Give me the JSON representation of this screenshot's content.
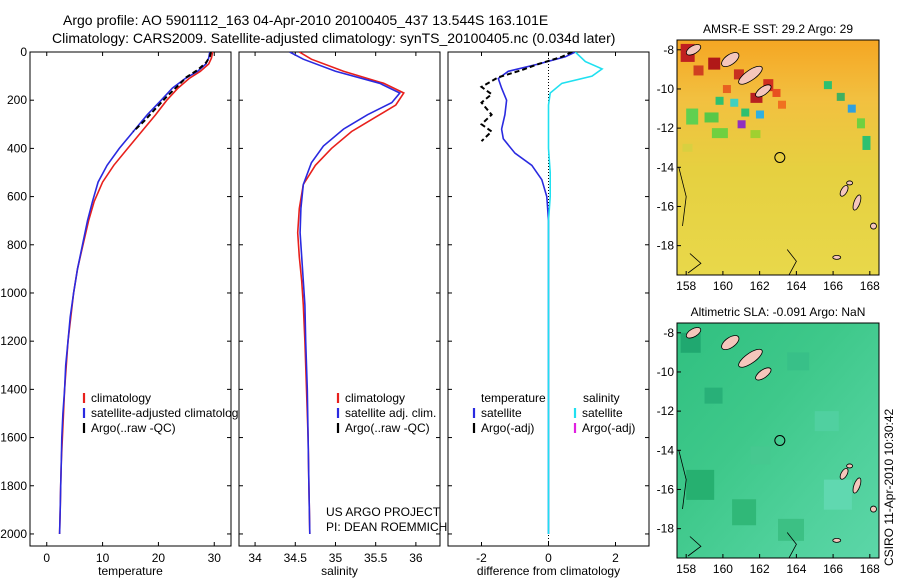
{
  "header": {
    "line1": "Argo profile: AO 5901112_163 04-Apr-2010 20100405_437 13.544S 163.101E",
    "line2": "Climatology: CARS2009. Satellite-adjusted climatology: synTS_20100405.nc (0.034d later)"
  },
  "credit": {
    "project": "US ARGO PROJECT",
    "pi": "PI: DEAN ROEMMICH",
    "stamp": "CSIRO 11-Apr-2010 10:30:42"
  },
  "colors": {
    "climatology": "#e8201c",
    "satellite": "#2a2ae0",
    "argo": "#000000",
    "satellite_salinity": "#20e0f0",
    "argo_adj_salinity": "#e020e0",
    "land": "#f5c6bc",
    "panel_border": "#000000"
  },
  "chart_data": [
    {
      "type": "line",
      "id": "temperature",
      "xlabel": "temperature",
      "ylabel": "",
      "xlim": [
        -3,
        33
      ],
      "ylim": [
        2050,
        0
      ],
      "y_inverted": true,
      "xticks": [
        0,
        10,
        20,
        30
      ],
      "yticks": [
        0,
        200,
        400,
        600,
        800,
        1000,
        1200,
        1400,
        1600,
        1800,
        2000
      ],
      "legend": [
        "climatology",
        "satellite-adjusted climatolog",
        "Argo(..raw -QC)"
      ],
      "series": [
        {
          "name": "climatology",
          "color_key": "climatology",
          "points": [
            [
              29.7,
              0
            ],
            [
              29.5,
              25
            ],
            [
              29.0,
              50
            ],
            [
              27.5,
              80
            ],
            [
              25.5,
              110
            ],
            [
              23.5,
              150
            ],
            [
              21.5,
              200
            ],
            [
              19.5,
              260
            ],
            [
              17.0,
              330
            ],
            [
              14.5,
              400
            ],
            [
              12.0,
              470
            ],
            [
              10.0,
              540
            ],
            [
              8.5,
              620
            ],
            [
              7.5,
              700
            ],
            [
              6.5,
              800
            ],
            [
              5.5,
              900
            ],
            [
              4.8,
              1000
            ],
            [
              4.3,
              1100
            ],
            [
              3.8,
              1200
            ],
            [
              3.5,
              1300
            ],
            [
              3.2,
              1400
            ],
            [
              3.0,
              1500
            ],
            [
              2.8,
              1600
            ],
            [
              2.6,
              1700
            ],
            [
              2.5,
              1800
            ],
            [
              2.4,
              1900
            ],
            [
              2.3,
              2000
            ]
          ]
        },
        {
          "name": "satellite-adjusted climatolog",
          "color_key": "satellite",
          "points": [
            [
              29.2,
              0
            ],
            [
              29.0,
              25
            ],
            [
              28.5,
              50
            ],
            [
              27.0,
              80
            ],
            [
              24.8,
              110
            ],
            [
              22.5,
              150
            ],
            [
              20.5,
              200
            ],
            [
              18.0,
              260
            ],
            [
              15.5,
              330
            ],
            [
              13.0,
              400
            ],
            [
              10.8,
              470
            ],
            [
              9.2,
              540
            ],
            [
              8.2,
              620
            ],
            [
              7.3,
              700
            ],
            [
              6.4,
              800
            ],
            [
              5.5,
              900
            ],
            [
              4.8,
              1000
            ],
            [
              4.2,
              1100
            ],
            [
              3.8,
              1200
            ],
            [
              3.4,
              1300
            ],
            [
              3.2,
              1400
            ],
            [
              2.9,
              1500
            ],
            [
              2.7,
              1600
            ],
            [
              2.6,
              1700
            ],
            [
              2.5,
              1800
            ],
            [
              2.4,
              1900
            ],
            [
              2.3,
              2000
            ]
          ]
        },
        {
          "name": "Argo(..raw -QC)",
          "color_key": "argo",
          "dashed": true,
          "points": [
            [
              29.4,
              0
            ],
            [
              29.2,
              20
            ],
            [
              28.5,
              45
            ],
            [
              27.0,
              75
            ],
            [
              25.0,
              105
            ],
            [
              23.5,
              140
            ],
            [
              21.5,
              185
            ],
            [
              19.5,
              235
            ],
            [
              17.5,
              285
            ],
            [
              15.5,
              330
            ]
          ]
        }
      ]
    },
    {
      "type": "line",
      "id": "salinity",
      "xlabel": "salinity",
      "ylabel": "",
      "xlim": [
        33.8,
        36.3
      ],
      "ylim": [
        2050,
        0
      ],
      "y_inverted": true,
      "xticks": [
        34,
        34.5,
        35,
        35.5,
        36
      ],
      "legend": [
        "climatology",
        "satellite adj. clim.",
        "Argo(..raw -QC)"
      ],
      "series": [
        {
          "name": "climatology",
          "color_key": "climatology",
          "points": [
            [
              34.55,
              0
            ],
            [
              34.7,
              30
            ],
            [
              35.1,
              80
            ],
            [
              35.6,
              130
            ],
            [
              35.85,
              170
            ],
            [
              35.75,
              220
            ],
            [
              35.5,
              270
            ],
            [
              35.2,
              330
            ],
            [
              34.95,
              400
            ],
            [
              34.75,
              470
            ],
            [
              34.6,
              550
            ],
            [
              34.55,
              650
            ],
            [
              34.53,
              750
            ],
            [
              34.55,
              850
            ],
            [
              34.58,
              950
            ],
            [
              34.6,
              1050
            ],
            [
              34.62,
              1200
            ],
            [
              34.64,
              1400
            ],
            [
              34.66,
              1600
            ],
            [
              34.67,
              1800
            ],
            [
              34.68,
              2000
            ]
          ]
        },
        {
          "name": "satellite adj. clim.",
          "color_key": "satellite",
          "points": [
            [
              34.43,
              0
            ],
            [
              34.6,
              30
            ],
            [
              35.0,
              80
            ],
            [
              35.55,
              130
            ],
            [
              35.8,
              170
            ],
            [
              35.7,
              210
            ],
            [
              35.4,
              260
            ],
            [
              35.1,
              320
            ],
            [
              34.85,
              390
            ],
            [
              34.7,
              460
            ],
            [
              34.6,
              550
            ],
            [
              34.57,
              650
            ],
            [
              34.56,
              750
            ],
            [
              34.58,
              850
            ],
            [
              34.6,
              950
            ],
            [
              34.62,
              1050
            ],
            [
              34.63,
              1200
            ],
            [
              34.65,
              1400
            ],
            [
              34.66,
              1600
            ],
            [
              34.67,
              1800
            ],
            [
              34.68,
              2000
            ]
          ]
        }
      ]
    },
    {
      "type": "line",
      "id": "difference",
      "xlabel": "difference from climatology",
      "ylabel": "",
      "xlim": [
        -3,
        3
      ],
      "ylim": [
        2050,
        0
      ],
      "y_inverted": true,
      "xticks": [
        -2,
        0,
        2
      ],
      "legend_left_title": "temperature",
      "legend_right_title": "salinity",
      "legend": [
        "satellite",
        "Argo(-adj)",
        "satellite",
        "Argo(-adj)"
      ],
      "series": [
        {
          "name": "satellite",
          "color_key": "satellite",
          "points": [
            [
              0.8,
              0
            ],
            [
              0.5,
              20
            ],
            [
              -0.3,
              50
            ],
            [
              -1.2,
              80
            ],
            [
              -1.5,
              110
            ],
            [
              -1.4,
              150
            ],
            [
              -1.25,
              200
            ],
            [
              -1.3,
              260
            ],
            [
              -1.4,
              320
            ],
            [
              -1.35,
              360
            ],
            [
              -1.0,
              420
            ],
            [
              -0.5,
              470
            ],
            [
              -0.2,
              530
            ],
            [
              -0.05,
              600
            ],
            [
              0.0,
              700
            ],
            [
              0.0,
              1000
            ],
            [
              0.0,
              1500
            ],
            [
              0.0,
              2000
            ]
          ]
        },
        {
          "name": "satellite",
          "color_key": "satellite_salinity",
          "points": [
            [
              0.8,
              0
            ],
            [
              1.1,
              40
            ],
            [
              1.6,
              70
            ],
            [
              1.3,
              100
            ],
            [
              0.4,
              130
            ],
            [
              0.05,
              170
            ],
            [
              0.0,
              220
            ],
            [
              0.0,
              400
            ],
            [
              0.05,
              500
            ],
            [
              0.05,
              600
            ],
            [
              0.0,
              700
            ],
            [
              0.0,
              1000
            ],
            [
              0.0,
              2000
            ]
          ]
        },
        {
          "name": "Argo(-adj)",
          "color_key": "argo",
          "dashed": true,
          "points": [
            [
              0.7,
              0
            ],
            [
              0.4,
              20
            ],
            [
              -0.3,
              50
            ],
            [
              -0.8,
              75
            ],
            [
              -1.5,
              105
            ],
            [
              -2.0,
              145
            ],
            [
              -1.7,
              175
            ],
            [
              -2.0,
              210
            ],
            [
              -1.7,
              260
            ],
            [
              -2.0,
              300
            ],
            [
              -1.7,
              330
            ],
            [
              -2.0,
              370
            ]
          ]
        }
      ]
    },
    {
      "type": "heatmap",
      "id": "sst-map",
      "title": "AMSR-E SST: 29.2 Argo: 29",
      "xlim": [
        157.5,
        168.5
      ],
      "ylim": [
        -19.5,
        -7.5
      ],
      "xticks": [
        158,
        160,
        162,
        164,
        166,
        168
      ],
      "yticks": [
        -8,
        -10,
        -12,
        -14,
        -16,
        -18
      ],
      "marker": {
        "lon": 163.1,
        "lat": -13.5
      }
    },
    {
      "type": "heatmap",
      "id": "sla-map",
      "title": "Altimetric SLA: -0.091 Argo: NaN",
      "xlim": [
        157.5,
        168.5
      ],
      "ylim": [
        -19.5,
        -7.5
      ],
      "xticks": [
        158,
        160,
        162,
        164,
        166,
        168
      ],
      "yticks": [
        -8,
        -10,
        -12,
        -14,
        -16,
        -18
      ],
      "marker": {
        "lon": 163.1,
        "lat": -13.5
      }
    }
  ]
}
